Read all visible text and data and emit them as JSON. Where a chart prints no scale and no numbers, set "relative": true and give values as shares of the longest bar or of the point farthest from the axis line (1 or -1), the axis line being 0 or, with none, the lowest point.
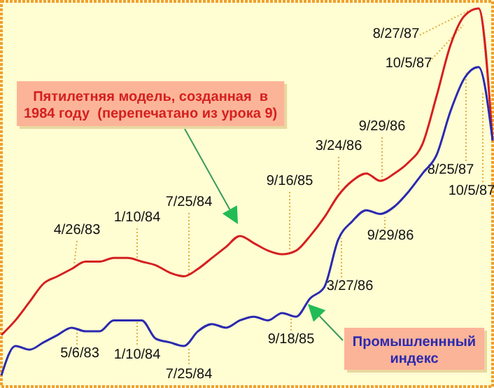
{
  "chart_data": {
    "type": "line",
    "relative": true,
    "legend": false,
    "marker": "none",
    "line_style": "solid",
    "grid": false,
    "categories": [
      null,
      null,
      null,
      null,
      null,
      null,
      null,
      null,
      null,
      null,
      null,
      null,
      null,
      null,
      null,
      null,
      null,
      null,
      null,
      null,
      null,
      null,
      null,
      null,
      null,
      null,
      null,
      null,
      null,
      null,
      null,
      null,
      null,
      null,
      null,
      null
    ],
    "series": [
      {
        "name": "Пятилетняя модель, созданная  в\n1984 году  (перепечатано из урока 9)",
        "color": "#d42020",
        "values": [
          0.11,
          0.15,
          0.2,
          0.25,
          0.27,
          0.29,
          0.31,
          0.31,
          0.32,
          0.32,
          0.31,
          0.3,
          0.28,
          0.27,
          0.29,
          0.32,
          0.35,
          0.38,
          0.36,
          0.34,
          0.33,
          0.34,
          0.38,
          0.43,
          0.49,
          0.53,
          0.55,
          0.53,
          0.55,
          0.58,
          0.63,
          0.76,
          0.9,
          0.98,
          1,
          0.64
        ]
      },
      {
        "name": "Промышленнный\nиндекс",
        "color": "#2a2ab0",
        "values": [
          0,
          0.08,
          0.07,
          0.09,
          0.11,
          0.13,
          0.12,
          0.12,
          0.15,
          0.15,
          0.15,
          0.1,
          0.09,
          0.08,
          0.12,
          0.14,
          0.13,
          0.15,
          0.16,
          0.15,
          0.17,
          0.16,
          0.21,
          0.24,
          0.37,
          0.42,
          0.45,
          0.44,
          0.46,
          0.5,
          0.55,
          0.6,
          0.72,
          0.81,
          0.84,
          0.64
        ]
      }
    ],
    "annotations": [
      "4/26/83",
      "1/10/84",
      "7/25/84",
      "9/16/85",
      "3/24/86",
      "9/29/86",
      "8/27/87",
      "10/5/87",
      "5/6/83",
      "1/10/84",
      "7/25/84",
      "9/18/85",
      "3/27/86",
      "9/29/86",
      "8/25/87",
      "10/5/87"
    ]
  }
}
